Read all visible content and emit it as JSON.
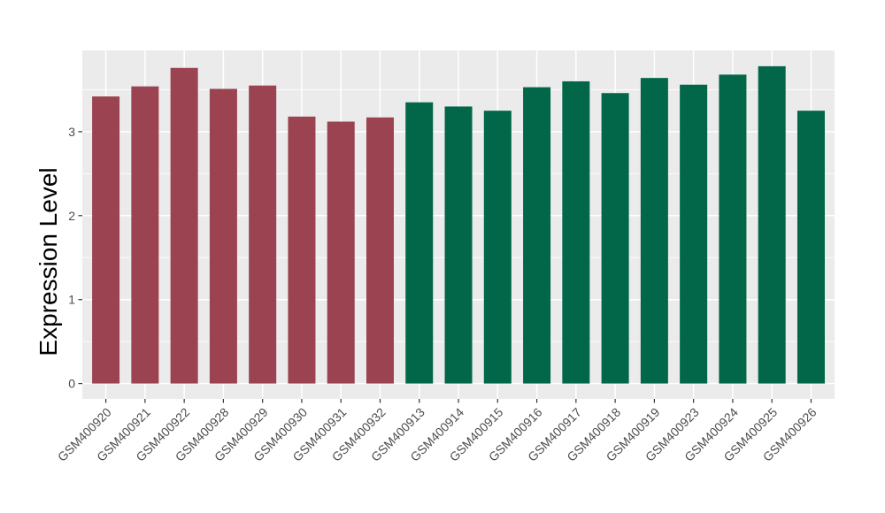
{
  "chart_data": {
    "type": "bar",
    "title": "",
    "xlabel": "",
    "ylabel": "Expression Level",
    "ylim": [
      -0.18,
      3.97
    ],
    "yticks": [
      0,
      1,
      2,
      3
    ],
    "yminor": [
      0.5,
      1.5,
      2.5,
      3.5
    ],
    "grid": "on",
    "legend": "none",
    "panel_bg_color": "#EBEBEB",
    "grid_color": "#FFFFFF",
    "tick_color": "#333333",
    "tick_label_color": "#4D4D4D",
    "axis_title_color": "#000000",
    "group_colors": {
      "maroon": "#9B4351",
      "green": "#026648"
    },
    "bars": [
      {
        "label": "GSM400920",
        "value": 3.42,
        "group": "maroon"
      },
      {
        "label": "GSM400921",
        "value": 3.54,
        "group": "maroon"
      },
      {
        "label": "GSM400922",
        "value": 3.76,
        "group": "maroon"
      },
      {
        "label": "GSM400928",
        "value": 3.51,
        "group": "maroon"
      },
      {
        "label": "GSM400929",
        "value": 3.55,
        "group": "maroon"
      },
      {
        "label": "GSM400930",
        "value": 3.18,
        "group": "maroon"
      },
      {
        "label": "GSM400931",
        "value": 3.12,
        "group": "maroon"
      },
      {
        "label": "GSM400932",
        "value": 3.17,
        "group": "maroon"
      },
      {
        "label": "GSM400913",
        "value": 3.35,
        "group": "green"
      },
      {
        "label": "GSM400914",
        "value": 3.3,
        "group": "green"
      },
      {
        "label": "GSM400915",
        "value": 3.25,
        "group": "green"
      },
      {
        "label": "GSM400916",
        "value": 3.53,
        "group": "green"
      },
      {
        "label": "GSM400917",
        "value": 3.6,
        "group": "green"
      },
      {
        "label": "GSM400918",
        "value": 3.46,
        "group": "green"
      },
      {
        "label": "GSM400919",
        "value": 3.64,
        "group": "green"
      },
      {
        "label": "GSM400923",
        "value": 3.56,
        "group": "green"
      },
      {
        "label": "GSM400924",
        "value": 3.68,
        "group": "green"
      },
      {
        "label": "GSM400925",
        "value": 3.78,
        "group": "green"
      },
      {
        "label": "GSM400926",
        "value": 3.25,
        "group": "green"
      }
    ]
  }
}
